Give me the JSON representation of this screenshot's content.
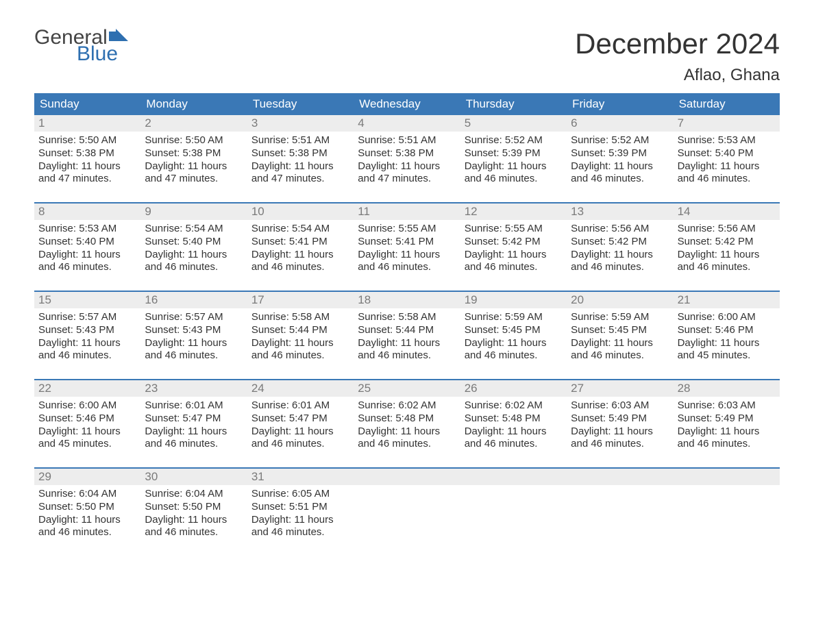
{
  "logo": {
    "general": "General",
    "blue": "Blue",
    "flag_color": "#2e6fb0"
  },
  "title": "December 2024",
  "location": "Aflao, Ghana",
  "colors": {
    "header_bg": "#3a78b6",
    "header_text": "#ffffff",
    "daynum_bg": "#ededed",
    "daynum_text": "#7a7a7a",
    "body_text": "#333333",
    "rule": "#3a78b6"
  },
  "day_names": [
    "Sunday",
    "Monday",
    "Tuesday",
    "Wednesday",
    "Thursday",
    "Friday",
    "Saturday"
  ],
  "labels": {
    "sunrise": "Sunrise:",
    "sunset": "Sunset:",
    "daylight": "Daylight:"
  },
  "weeks": [
    [
      {
        "n": "1",
        "sr": "5:50 AM",
        "ss": "5:38 PM",
        "dl": "11 hours and 47 minutes."
      },
      {
        "n": "2",
        "sr": "5:50 AM",
        "ss": "5:38 PM",
        "dl": "11 hours and 47 minutes."
      },
      {
        "n": "3",
        "sr": "5:51 AM",
        "ss": "5:38 PM",
        "dl": "11 hours and 47 minutes."
      },
      {
        "n": "4",
        "sr": "5:51 AM",
        "ss": "5:38 PM",
        "dl": "11 hours and 47 minutes."
      },
      {
        "n": "5",
        "sr": "5:52 AM",
        "ss": "5:39 PM",
        "dl": "11 hours and 46 minutes."
      },
      {
        "n": "6",
        "sr": "5:52 AM",
        "ss": "5:39 PM",
        "dl": "11 hours and 46 minutes."
      },
      {
        "n": "7",
        "sr": "5:53 AM",
        "ss": "5:40 PM",
        "dl": "11 hours and 46 minutes."
      }
    ],
    [
      {
        "n": "8",
        "sr": "5:53 AM",
        "ss": "5:40 PM",
        "dl": "11 hours and 46 minutes."
      },
      {
        "n": "9",
        "sr": "5:54 AM",
        "ss": "5:40 PM",
        "dl": "11 hours and 46 minutes."
      },
      {
        "n": "10",
        "sr": "5:54 AM",
        "ss": "5:41 PM",
        "dl": "11 hours and 46 minutes."
      },
      {
        "n": "11",
        "sr": "5:55 AM",
        "ss": "5:41 PM",
        "dl": "11 hours and 46 minutes."
      },
      {
        "n": "12",
        "sr": "5:55 AM",
        "ss": "5:42 PM",
        "dl": "11 hours and 46 minutes."
      },
      {
        "n": "13",
        "sr": "5:56 AM",
        "ss": "5:42 PM",
        "dl": "11 hours and 46 minutes."
      },
      {
        "n": "14",
        "sr": "5:56 AM",
        "ss": "5:42 PM",
        "dl": "11 hours and 46 minutes."
      }
    ],
    [
      {
        "n": "15",
        "sr": "5:57 AM",
        "ss": "5:43 PM",
        "dl": "11 hours and 46 minutes."
      },
      {
        "n": "16",
        "sr": "5:57 AM",
        "ss": "5:43 PM",
        "dl": "11 hours and 46 minutes."
      },
      {
        "n": "17",
        "sr": "5:58 AM",
        "ss": "5:44 PM",
        "dl": "11 hours and 46 minutes."
      },
      {
        "n": "18",
        "sr": "5:58 AM",
        "ss": "5:44 PM",
        "dl": "11 hours and 46 minutes."
      },
      {
        "n": "19",
        "sr": "5:59 AM",
        "ss": "5:45 PM",
        "dl": "11 hours and 46 minutes."
      },
      {
        "n": "20",
        "sr": "5:59 AM",
        "ss": "5:45 PM",
        "dl": "11 hours and 46 minutes."
      },
      {
        "n": "21",
        "sr": "6:00 AM",
        "ss": "5:46 PM",
        "dl": "11 hours and 45 minutes."
      }
    ],
    [
      {
        "n": "22",
        "sr": "6:00 AM",
        "ss": "5:46 PM",
        "dl": "11 hours and 45 minutes."
      },
      {
        "n": "23",
        "sr": "6:01 AM",
        "ss": "5:47 PM",
        "dl": "11 hours and 46 minutes."
      },
      {
        "n": "24",
        "sr": "6:01 AM",
        "ss": "5:47 PM",
        "dl": "11 hours and 46 minutes."
      },
      {
        "n": "25",
        "sr": "6:02 AM",
        "ss": "5:48 PM",
        "dl": "11 hours and 46 minutes."
      },
      {
        "n": "26",
        "sr": "6:02 AM",
        "ss": "5:48 PM",
        "dl": "11 hours and 46 minutes."
      },
      {
        "n": "27",
        "sr": "6:03 AM",
        "ss": "5:49 PM",
        "dl": "11 hours and 46 minutes."
      },
      {
        "n": "28",
        "sr": "6:03 AM",
        "ss": "5:49 PM",
        "dl": "11 hours and 46 minutes."
      }
    ],
    [
      {
        "n": "29",
        "sr": "6:04 AM",
        "ss": "5:50 PM",
        "dl": "11 hours and 46 minutes."
      },
      {
        "n": "30",
        "sr": "6:04 AM",
        "ss": "5:50 PM",
        "dl": "11 hours and 46 minutes."
      },
      {
        "n": "31",
        "sr": "6:05 AM",
        "ss": "5:51 PM",
        "dl": "11 hours and 46 minutes."
      },
      null,
      null,
      null,
      null
    ]
  ]
}
